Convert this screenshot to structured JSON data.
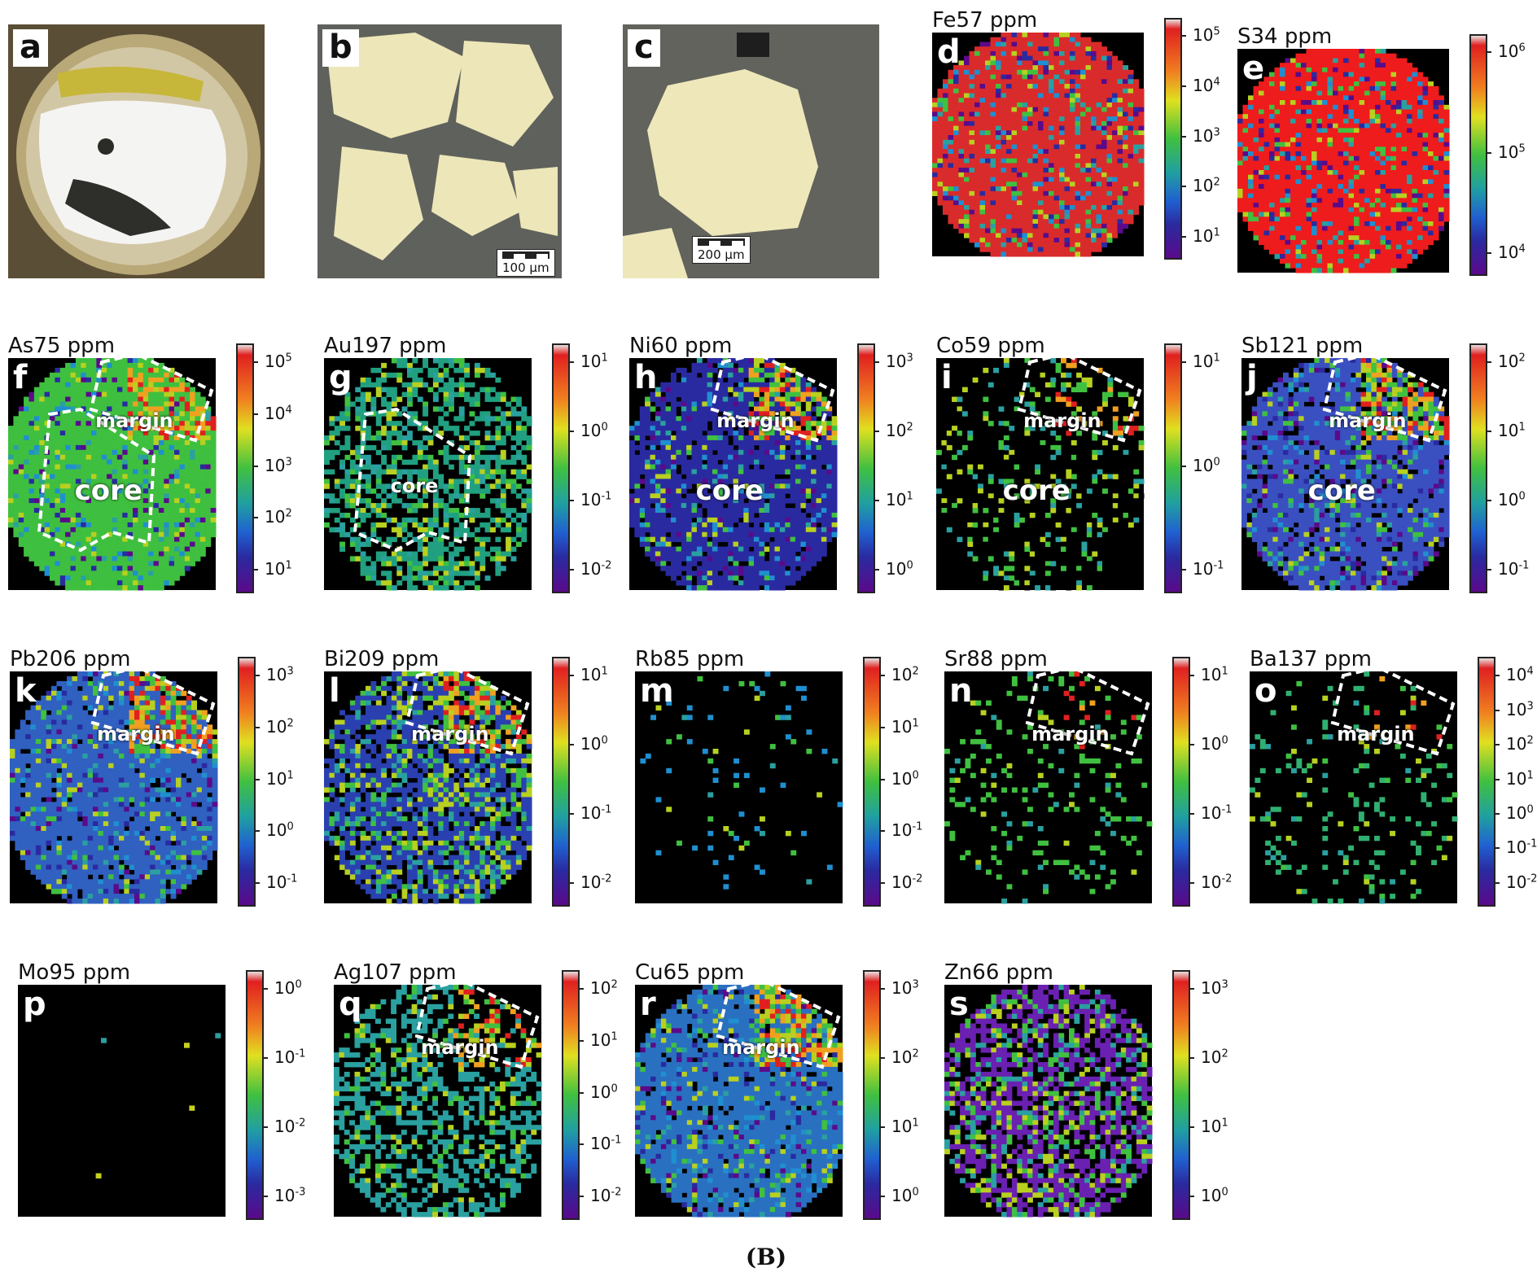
{
  "photos": [
    {
      "letter": "a",
      "kind": "mount"
    },
    {
      "letter": "b",
      "kind": "reflected",
      "scalebar": "100 µm"
    },
    {
      "letter": "c",
      "kind": "reflected",
      "scalebar": "200 µm"
    }
  ],
  "maps": [
    {
      "letter": "d",
      "title": "Fe57 ppm",
      "ticks": [
        "10^5",
        "10^4",
        "10^3",
        "10^2",
        "10^1"
      ],
      "base": "#d92b2b",
      "density": 1.0,
      "labels": []
    },
    {
      "letter": "e",
      "title": "S34 ppm",
      "ticks": [
        "10^6",
        "10^5",
        "10^4"
      ],
      "base": "#ee1c1c",
      "density": 1.0,
      "labels": []
    },
    {
      "letter": "f",
      "title": "As75 ppm",
      "ticks": [
        "10^5",
        "10^4",
        "10^3",
        "10^2",
        "10^1"
      ],
      "base": "#3fbf3f",
      "density": 1.0,
      "labels": [
        "margin",
        "core"
      ]
    },
    {
      "letter": "g",
      "title": "Au197 ppm",
      "ticks": [
        "10^1",
        "10^0",
        "10^-1",
        "10^-2"
      ],
      "base": "#20a080",
      "density": 0.55,
      "labels": [
        "core"
      ]
    },
    {
      "letter": "h",
      "title": "Ni60 ppm",
      "ticks": [
        "10^3",
        "10^2",
        "10^1",
        "10^0"
      ],
      "base": "#2a2aa0",
      "density": 0.9,
      "labels": [
        "margin",
        "core"
      ]
    },
    {
      "letter": "i",
      "title": "Co59 ppm",
      "ticks": [
        "10^1",
        "10^0",
        "10^-1"
      ],
      "base": "#000000",
      "density": 0.35,
      "labels": [
        "margin",
        "core"
      ]
    },
    {
      "letter": "j",
      "title": "Sb121 ppm",
      "ticks": [
        "10^2",
        "10^1",
        "10^0",
        "10^-1"
      ],
      "base": "#3a50c0",
      "density": 0.9,
      "labels": [
        "margin",
        "core"
      ]
    },
    {
      "letter": "k",
      "title": "Pb206 ppm",
      "ticks": [
        "10^3",
        "10^2",
        "10^1",
        "10^0",
        "10^-1"
      ],
      "base": "#3060c0",
      "density": 0.95,
      "labels": [
        "margin"
      ]
    },
    {
      "letter": "l",
      "title": "Bi209 ppm",
      "ticks": [
        "10^1",
        "10^0",
        "10^-1",
        "10^-2"
      ],
      "base": "#2a40b0",
      "density": 0.8,
      "labels": [
        "margin"
      ]
    },
    {
      "letter": "m",
      "title": "Rb85 ppm",
      "ticks": [
        "10^2",
        "10^1",
        "10^0",
        "10^-1",
        "10^-2"
      ],
      "base": "#1f8fd0",
      "density": 0.05,
      "labels": []
    },
    {
      "letter": "n",
      "title": "Sr88 ppm",
      "ticks": [
        "10^1",
        "10^0",
        "10^-1",
        "10^-2"
      ],
      "base": "#40c040",
      "density": 0.12,
      "labels": [
        "margin"
      ]
    },
    {
      "letter": "o",
      "title": "Ba137 ppm",
      "ticks": [
        "10^4",
        "10^3",
        "10^2",
        "10^1",
        "10^0",
        "10^-1",
        "10^-2"
      ],
      "base": "#30b070",
      "density": 0.12,
      "labels": [
        "margin"
      ]
    },
    {
      "letter": "p",
      "title": "Mo95 ppm",
      "ticks": [
        "10^0",
        "10^-1",
        "10^-2",
        "10^-3"
      ],
      "base": "#c8d020",
      "density": 0.004,
      "labels": []
    },
    {
      "letter": "q",
      "title": "Ag107 ppm",
      "ticks": [
        "10^2",
        "10^1",
        "10^0",
        "10^-1",
        "10^-2"
      ],
      "base": "#2aa0a0",
      "density": 0.45,
      "labels": [
        "margin"
      ]
    },
    {
      "letter": "r",
      "title": "Cu65 ppm",
      "ticks": [
        "10^3",
        "10^2",
        "10^1",
        "10^0"
      ],
      "base": "#2a70c0",
      "density": 0.95,
      "labels": [
        "margin"
      ]
    },
    {
      "letter": "s",
      "title": "Zn66 ppm",
      "ticks": [
        "10^3",
        "10^2",
        "10^1",
        "10^0"
      ],
      "base": "#6a20b0",
      "density": 0.7,
      "labels": []
    }
  ],
  "caption_label": "(B)"
}
